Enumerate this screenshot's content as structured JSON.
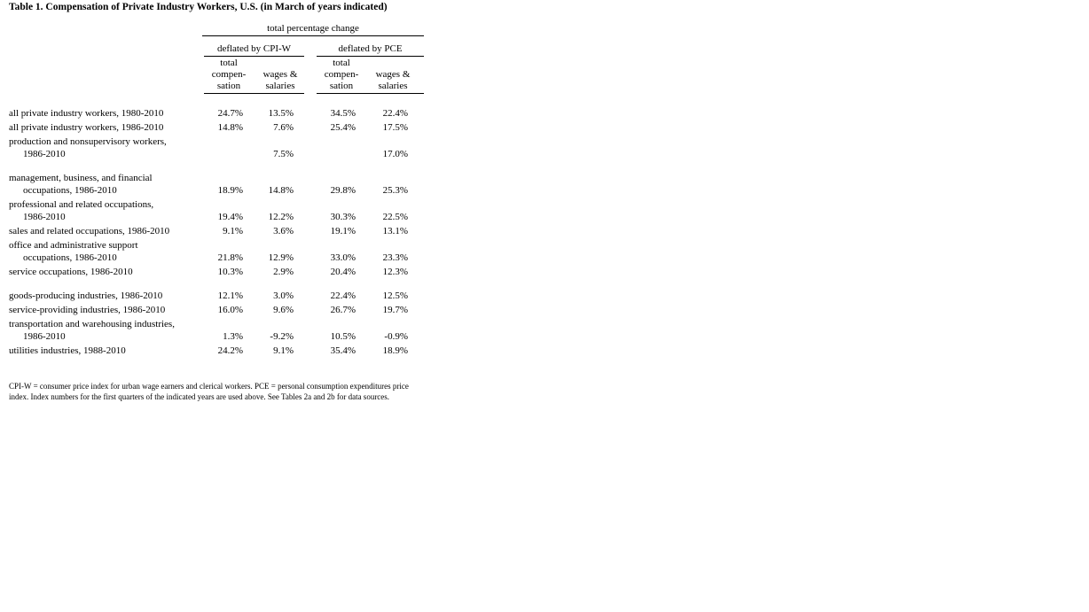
{
  "title": "Table 1. Compensation of Private Industry Workers, U.S. (in March of years indicated)",
  "table": {
    "span_header": "total percentage change",
    "group_headers": [
      "deflated by CPI-W",
      "deflated by PCE"
    ],
    "column_headers": [
      [
        "total",
        "compen-",
        "sation"
      ],
      [
        "wages &",
        "salaries"
      ],
      [
        "total",
        "compen-",
        "sation"
      ],
      [
        "wages &",
        "salaries"
      ]
    ],
    "rows": [
      {
        "label_lines": [
          "all private industry workers, 1980-2010"
        ],
        "values": [
          "24.7%",
          "13.5%",
          "34.5%",
          "22.4%"
        ]
      },
      {
        "label_lines": [
          "all private industry workers, 1986-2010"
        ],
        "values": [
          "14.8%",
          "7.6%",
          "25.4%",
          "17.5%"
        ]
      },
      {
        "label_lines": [
          "production and nonsupervisory workers,",
          "1986-2010"
        ],
        "values": [
          "",
          "7.5%",
          "",
          "17.0%"
        ]
      },
      {
        "spacer": true
      },
      {
        "label_lines": [
          "management, business, and financial",
          "occupations, 1986-2010"
        ],
        "values": [
          "18.9%",
          "14.8%",
          "29.8%",
          "25.3%"
        ]
      },
      {
        "label_lines": [
          "professional and related occupations,",
          "1986-2010"
        ],
        "values": [
          "19.4%",
          "12.2%",
          "30.3%",
          "22.5%"
        ]
      },
      {
        "label_lines": [
          "sales and related occupations, 1986-2010"
        ],
        "values": [
          "9.1%",
          "3.6%",
          "19.1%",
          "13.1%"
        ]
      },
      {
        "label_lines": [
          "office and administrative support",
          "occupations, 1986-2010"
        ],
        "values": [
          "21.8%",
          "12.9%",
          "33.0%",
          "23.3%"
        ]
      },
      {
        "label_lines": [
          "service occupations, 1986-2010"
        ],
        "values": [
          "10.3%",
          "2.9%",
          "20.4%",
          "12.3%"
        ]
      },
      {
        "spacer": true
      },
      {
        "label_lines": [
          "goods-producing industries, 1986-2010"
        ],
        "values": [
          "12.1%",
          "3.0%",
          "22.4%",
          "12.5%"
        ]
      },
      {
        "label_lines": [
          "service-providing industries, 1986-2010"
        ],
        "values": [
          "16.0%",
          "9.6%",
          "26.7%",
          "19.7%"
        ]
      },
      {
        "label_lines": [
          "transportation and warehousing industries,",
          "1986-2010"
        ],
        "values": [
          "1.3%",
          "-9.2%",
          "10.5%",
          "-0.9%"
        ]
      },
      {
        "label_lines": [
          "utilities industries, 1988-2010"
        ],
        "values": [
          "24.2%",
          "9.1%",
          "35.4%",
          "18.9%"
        ]
      }
    ]
  },
  "footnote": "CPI-W = consumer price index for urban wage earners and clerical workers. PCE = personal consumption expenditures price index. Index numbers for the first quarters of the indicated years are used above. See Tables 2a and 2b for data sources.",
  "colors": {
    "text": "#000000",
    "background": "#ffffff",
    "rule": "#000000"
  }
}
